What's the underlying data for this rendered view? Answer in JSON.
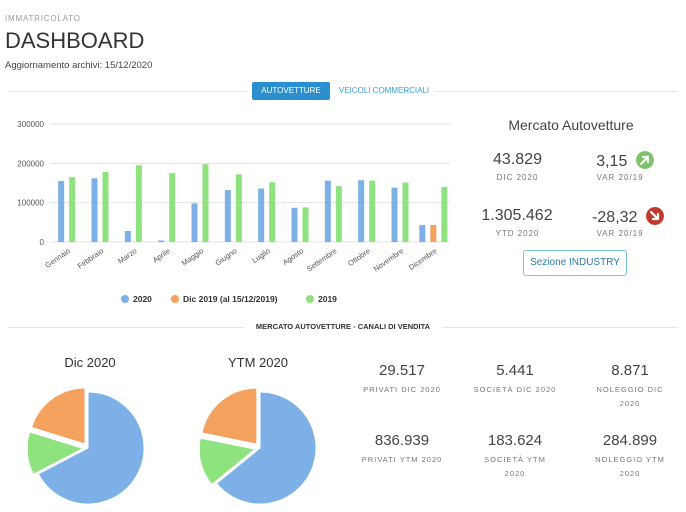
{
  "header": {
    "eyebrow": "IMMATRICOLATO",
    "title": "DASHBOARD",
    "update_line": "Aggiornamento archivi: 15/12/2020"
  },
  "tabs": [
    {
      "label": "AUTOVETTURE",
      "active": true
    },
    {
      "label": "VEICOLI COMMERCIALI",
      "active": false
    }
  ],
  "colors": {
    "series_2020": "#7cb0e6",
    "series_dic2019": "#f4a25d",
    "series_2019": "#8fe37e",
    "tab_active": "#2a8fcf",
    "arrow_up": "#7cc36b",
    "arrow_down": "#c0392b"
  },
  "chart_data": {
    "type": "bar",
    "categories": [
      "Gennaio",
      "Febbraio",
      "Marzo",
      "Aprile",
      "Maggio",
      "Giugno",
      "Luglio",
      "Agosto",
      "Settembre",
      "Ottobre",
      "Novembre",
      "Dicembre"
    ],
    "series": [
      {
        "name": "2020",
        "values": [
          155000,
          162000,
          28000,
          4000,
          98000,
          132000,
          136000,
          87000,
          156000,
          157000,
          138000,
          43000
        ]
      },
      {
        "name": "Dic 2019 (al 15/12/2019)",
        "values": [
          null,
          null,
          null,
          null,
          null,
          null,
          null,
          null,
          null,
          null,
          null,
          43000
        ]
      },
      {
        "name": "2019",
        "values": [
          165000,
          178000,
          195000,
          175000,
          198000,
          172000,
          152000,
          88000,
          142000,
          156000,
          151000,
          140000
        ]
      }
    ],
    "yticks": [
      0,
      100000,
      200000,
      300000
    ],
    "ylim": [
      0,
      300000
    ]
  },
  "market": {
    "title": "Mercato Autovetture",
    "dic_value": "43.829",
    "dic_label": "DIC 2020",
    "var_dic_value": "3,15",
    "var_dic_label": "VAR 20/19",
    "var_dic_direction": "up",
    "ytd_value": "1.305.462",
    "ytd_label": "YTD 2020",
    "var_ytd_value": "-28,32",
    "var_ytd_label": "VAR 20/19",
    "var_ytd_direction": "down",
    "industry_button": "Sezione INDUSTRY"
  },
  "channels": {
    "section_title": "MERCATO AUTOVETTURE - CANALI DI VENDITA",
    "pie_dic_title": "Dic 2020",
    "pie_ytm_title": "YTM 2020",
    "pie_dic": {
      "privati": 29517,
      "societa": 5441,
      "noleggio": 8871
    },
    "pie_ytm": {
      "privati": 836939,
      "societa": 183624,
      "noleggio": 284899
    },
    "privati_dic": "29.517",
    "privati_dic_label": "PRIVATI DIC 2020",
    "societa_dic": "5.441",
    "societa_dic_label": "SOCIETÀ DIC 2020",
    "noleggio_dic": "8.871",
    "noleggio_dic_label": "NOLEGGIO DIC 2020",
    "privati_ytm": "836.939",
    "privati_ytm_label": "PRIVATI YTM 2020",
    "societa_ytm": "183.624",
    "societa_ytm_label": "SOCIETÀ YTM 2020",
    "noleggio_ytm": "284.899",
    "noleggio_ytm_label": "NOLEGGIO YTM 2020"
  }
}
